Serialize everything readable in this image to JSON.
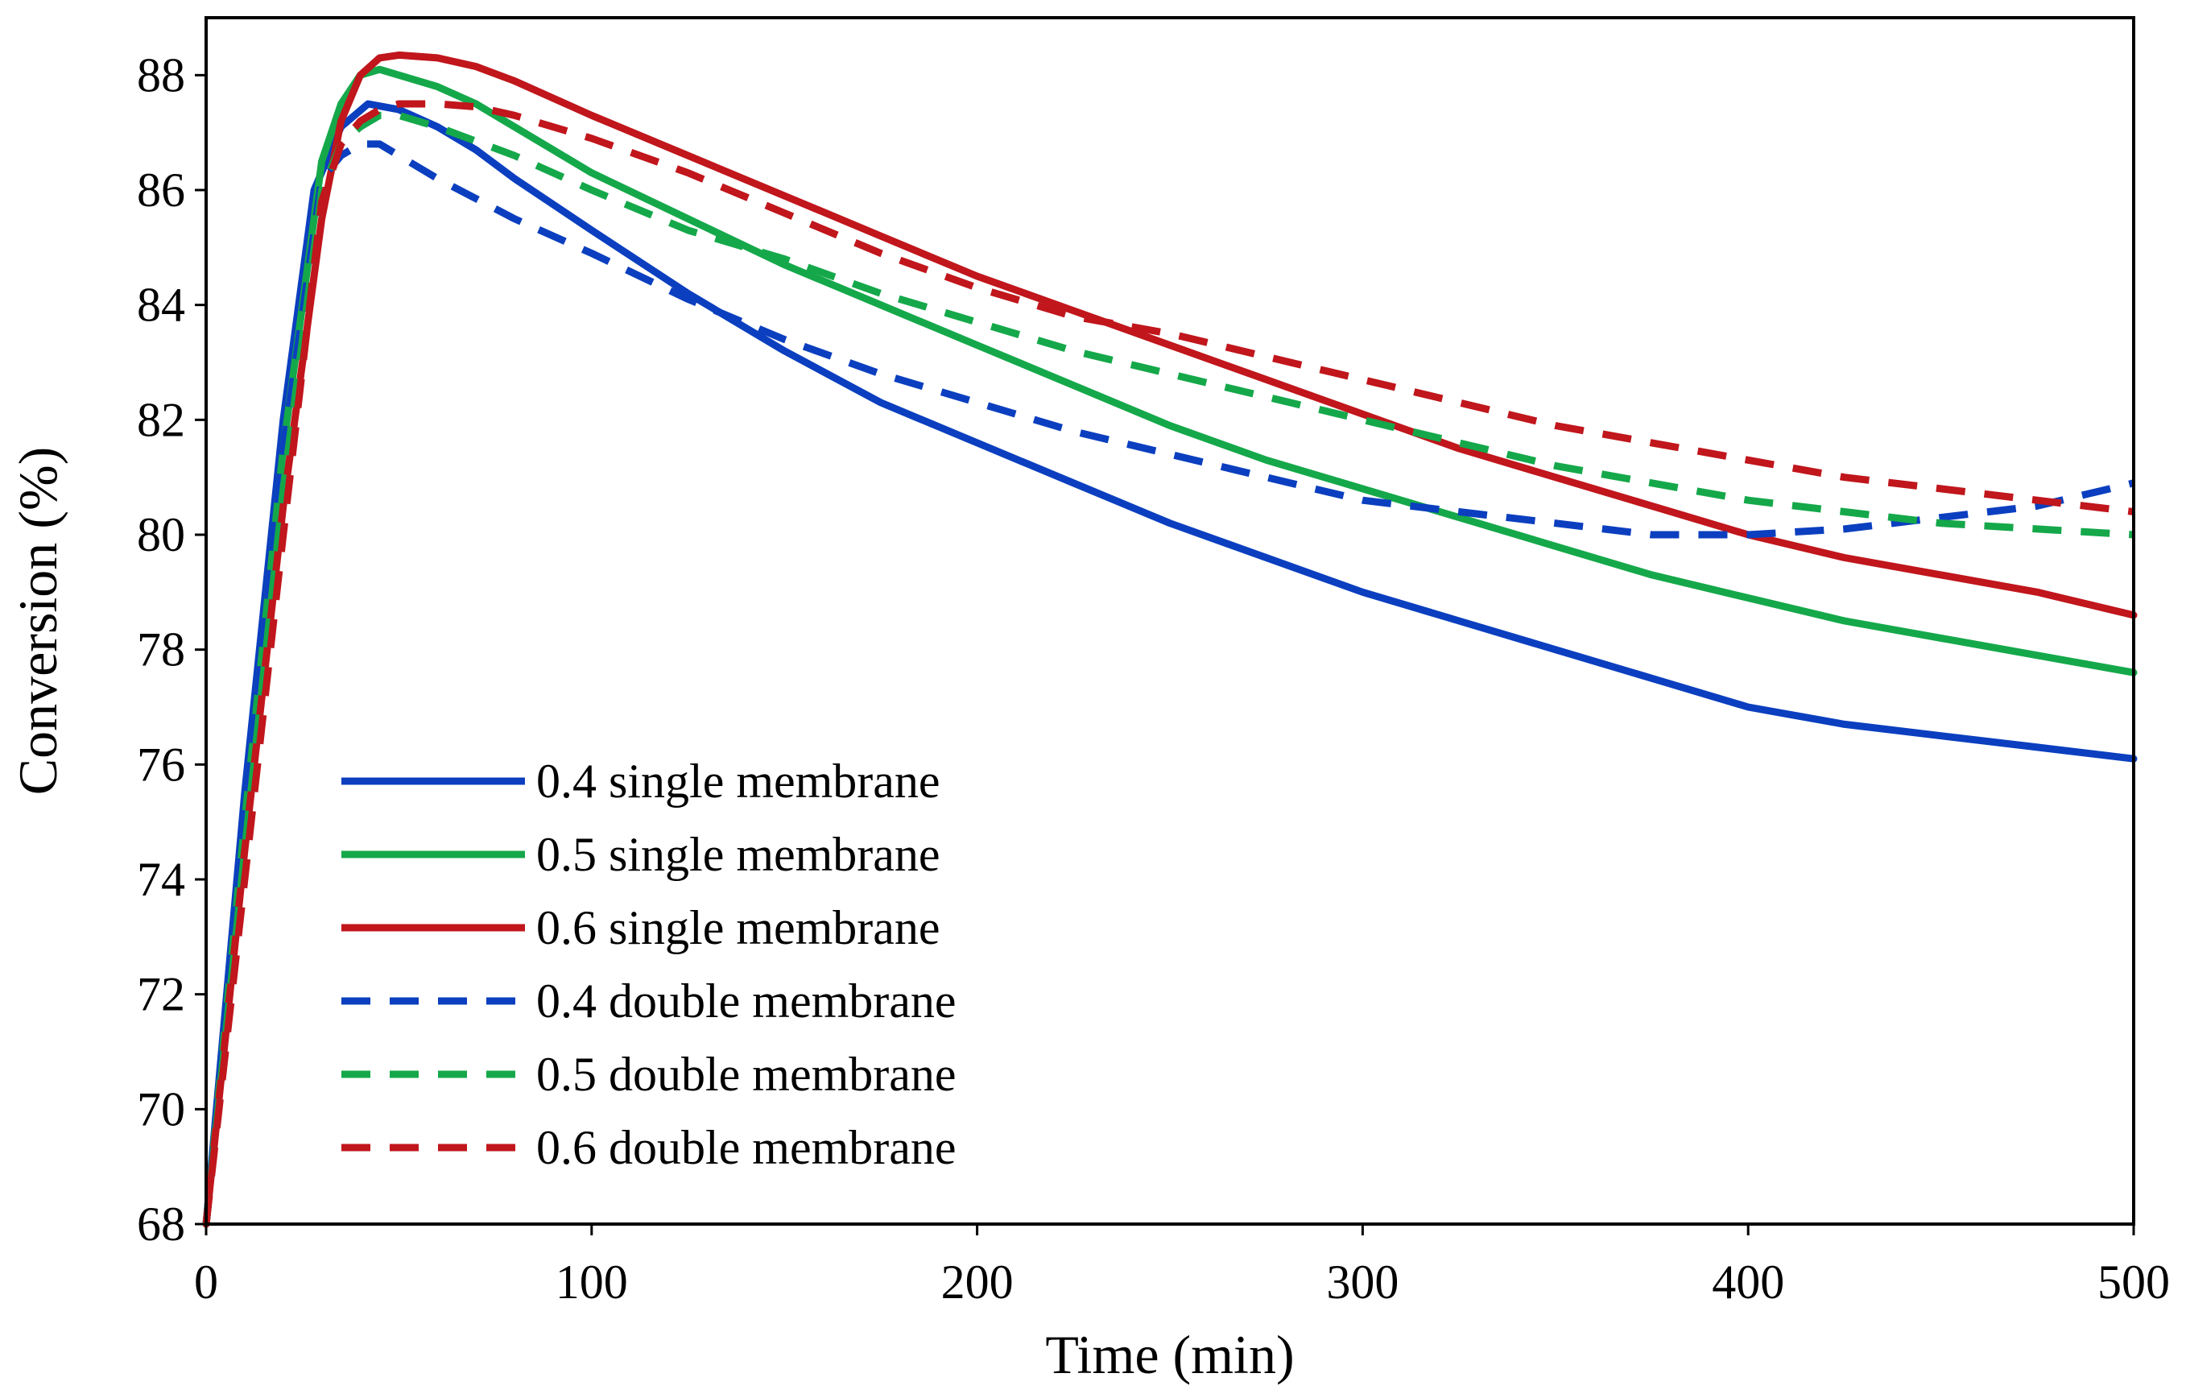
{
  "chart_data": {
    "type": "line",
    "title": "",
    "xlabel": "Time (min)",
    "ylabel": "Conversion (%)",
    "xlim": [
      0,
      500
    ],
    "ylim": [
      68,
      89
    ],
    "xticks": [
      0,
      100,
      200,
      300,
      400,
      500
    ],
    "yticks": [
      68,
      70,
      72,
      74,
      76,
      78,
      80,
      82,
      84,
      86,
      88
    ],
    "grid": false,
    "legend_position": "bottom-left",
    "series": [
      {
        "name": "0.4 single membrane",
        "color": "#0b3fbf",
        "dash": "solid",
        "x": [
          0,
          10,
          20,
          28,
          35,
          42,
          50,
          60,
          70,
          80,
          100,
          125,
          150,
          175,
          200,
          225,
          250,
          275,
          300,
          325,
          350,
          375,
          400,
          425,
          450,
          475,
          500
        ],
        "y": [
          68,
          75.5,
          82,
          86,
          87.1,
          87.5,
          87.4,
          87.1,
          86.7,
          86.2,
          85.3,
          84.2,
          83.2,
          82.3,
          81.6,
          80.9,
          80.2,
          79.6,
          79.0,
          78.5,
          78.0,
          77.5,
          77.0,
          76.7,
          76.5,
          76.3,
          76.1
        ]
      },
      {
        "name": "0.5 single membrane",
        "color": "#15a84a",
        "dash": "solid",
        "x": [
          0,
          10,
          20,
          30,
          35,
          40,
          45,
          50,
          60,
          70,
          80,
          100,
          125,
          150,
          175,
          200,
          225,
          250,
          275,
          300,
          325,
          350,
          375,
          400,
          425,
          450,
          475,
          500
        ],
        "y": [
          68,
          75,
          81.5,
          86.5,
          87.5,
          88.0,
          88.1,
          88.0,
          87.8,
          87.5,
          87.1,
          86.3,
          85.5,
          84.7,
          84.0,
          83.3,
          82.6,
          81.9,
          81.3,
          80.8,
          80.3,
          79.8,
          79.3,
          78.9,
          78.5,
          78.2,
          77.9,
          77.6
        ]
      },
      {
        "name": "0.6 single membrane",
        "color": "#c0161c",
        "dash": "solid",
        "x": [
          0,
          10,
          20,
          30,
          35,
          40,
          45,
          50,
          60,
          70,
          80,
          100,
          125,
          150,
          175,
          200,
          225,
          250,
          275,
          300,
          325,
          350,
          375,
          400,
          425,
          450,
          475,
          500
        ],
        "y": [
          68,
          74.5,
          80.5,
          85.5,
          87.2,
          88.0,
          88.3,
          88.35,
          88.3,
          88.15,
          87.9,
          87.3,
          86.6,
          85.9,
          85.2,
          84.5,
          83.9,
          83.3,
          82.7,
          82.1,
          81.5,
          81.0,
          80.5,
          80.0,
          79.6,
          79.3,
          79.0,
          78.6
        ]
      },
      {
        "name": "0.4 double membrane",
        "color": "#0b3fbf",
        "dash": "dashed",
        "x": [
          0,
          10,
          20,
          30,
          35,
          40,
          45,
          50,
          60,
          80,
          100,
          125,
          150,
          175,
          200,
          225,
          250,
          275,
          300,
          325,
          350,
          375,
          400,
          425,
          450,
          475,
          500
        ],
        "y": [
          68,
          75,
          81.5,
          86.2,
          86.6,
          86.8,
          86.8,
          86.6,
          86.2,
          85.5,
          84.9,
          84.1,
          83.4,
          82.8,
          82.3,
          81.8,
          81.4,
          81.0,
          80.6,
          80.4,
          80.2,
          80.0,
          80.0,
          80.1,
          80.3,
          80.5,
          80.9
        ]
      },
      {
        "name": "0.5 double membrane",
        "color": "#15a84a",
        "dash": "dashed",
        "x": [
          0,
          10,
          20,
          30,
          35,
          40,
          45,
          50,
          60,
          80,
          100,
          125,
          150,
          175,
          200,
          225,
          250,
          275,
          300,
          325,
          350,
          375,
          400,
          425,
          450,
          475,
          500
        ],
        "y": [
          68,
          74.5,
          80.8,
          86.0,
          86.8,
          87.1,
          87.3,
          87.3,
          87.1,
          86.6,
          86.0,
          85.3,
          84.8,
          84.2,
          83.7,
          83.2,
          82.8,
          82.4,
          82.0,
          81.6,
          81.2,
          80.9,
          80.6,
          80.4,
          80.2,
          80.1,
          80.0
        ]
      },
      {
        "name": "0.6 double membrane",
        "color": "#c0161c",
        "dash": "dashed",
        "x": [
          0,
          10,
          20,
          30,
          35,
          40,
          45,
          50,
          60,
          70,
          80,
          100,
          125,
          150,
          175,
          200,
          225,
          250,
          275,
          300,
          325,
          350,
          375,
          400,
          425,
          450,
          475,
          500
        ],
        "y": [
          68,
          74,
          80.0,
          85.8,
          86.8,
          87.2,
          87.4,
          87.5,
          87.5,
          87.45,
          87.3,
          86.9,
          86.3,
          85.6,
          84.9,
          84.3,
          83.8,
          83.5,
          83.1,
          82.7,
          82.3,
          81.9,
          81.6,
          81.3,
          81.0,
          80.8,
          80.6,
          80.4
        ]
      }
    ]
  }
}
